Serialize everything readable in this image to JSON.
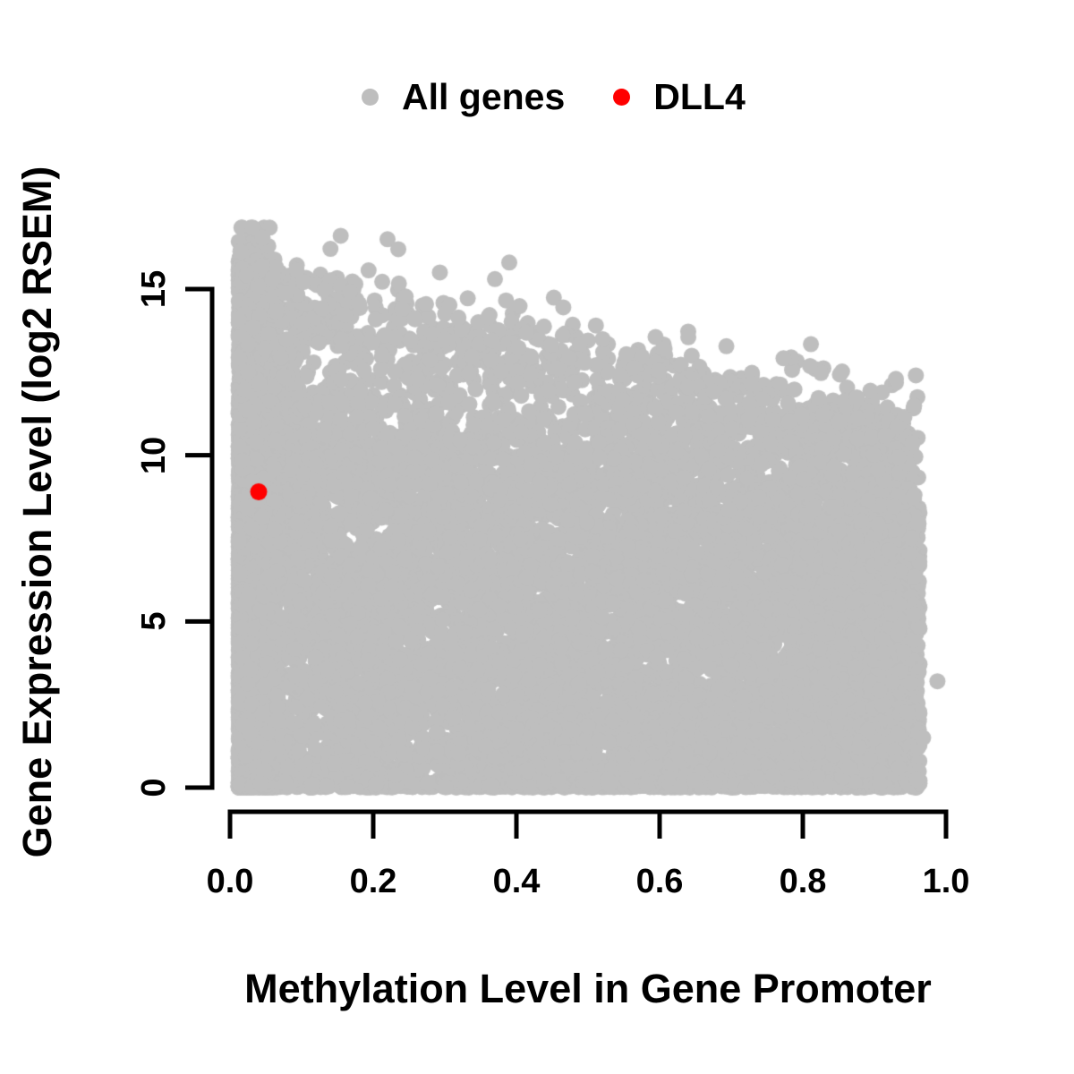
{
  "figure": {
    "background": "#FFFFFF",
    "text_color": "#000000",
    "axis_color": "#000000"
  },
  "legend": {
    "position": "top-center",
    "items": [
      {
        "label": "All genes",
        "color": "#BEBEBE",
        "marker": "circle"
      },
      {
        "label": "DLL4",
        "color": "#FF0000",
        "marker": "circle"
      }
    ]
  },
  "chart_data": {
    "type": "scatter",
    "title": "",
    "xlabel": "Methylation Level in Gene Promoter",
    "ylabel": "Gene Expression Level (log2 RSEM)",
    "xlim": [
      -0.04,
      1.04
    ],
    "ylim": [
      -0.6,
      17.2
    ],
    "grid": false,
    "x_ticks": {
      "values": [
        0,
        0.2,
        0.4,
        0.6,
        0.8,
        1.0
      ],
      "labels": [
        "0.0",
        "0.2",
        "0.4",
        "0.6",
        "0.8",
        "1.0"
      ]
    },
    "y_ticks": {
      "values": [
        0,
        5,
        10,
        15
      ],
      "labels": [
        "0",
        "5",
        "10",
        "15"
      ]
    },
    "series": [
      {
        "name": "All genes",
        "color": "#BEBEBE",
        "marker": "circle",
        "marker_radius_px": 9,
        "n_points_approx": 14000,
        "x_range": [
          0.01,
          0.965
        ],
        "y_range": [
          0,
          16.85
        ],
        "shape_summary": "Very dense cloud of gray points covering the full x range 0-0.96 from y=0 upward; a nearly solid vertical band at low methylation (x<0.08) reaches y~16.5; the upper envelope of the cloud declines roughly linearly to y~12 at x~0.95; bottom of the cloud is a solid edge at y=0; sparse isolated points sprinkle just above the dense envelope.",
        "point_cloud_model": {
          "seed": 42,
          "n_points": 14000,
          "left_band_weight": 0.3,
          "right_band_weight": 0.08,
          "zero_row_fraction": 0.07,
          "outlier_fraction": 0.006,
          "envelope_intercept": 15.9,
          "envelope_slope": -5.0,
          "envelope_jitter": 0.8,
          "outlier_extra_height": 1.3,
          "top_thin_start": 0.75,
          "top_thin_prob": 0.4,
          "x_min": 0.012,
          "x_max": 0.963,
          "y_cap": 16.85,
          "extra_points": [
            [
              0.988,
              3.2
            ],
            [
              0.968,
              1.5
            ],
            [
              0.93,
              12.3
            ],
            [
              0.22,
              16.5
            ],
            [
              0.235,
              16.2
            ],
            [
              0.39,
              15.8
            ],
            [
              0.37,
              15.3
            ]
          ]
        }
      },
      {
        "name": "DLL4",
        "color": "#FF0000",
        "marker": "circle",
        "marker_radius_px": 9.5,
        "points": [
          [
            0.04,
            8.9
          ]
        ]
      }
    ]
  }
}
